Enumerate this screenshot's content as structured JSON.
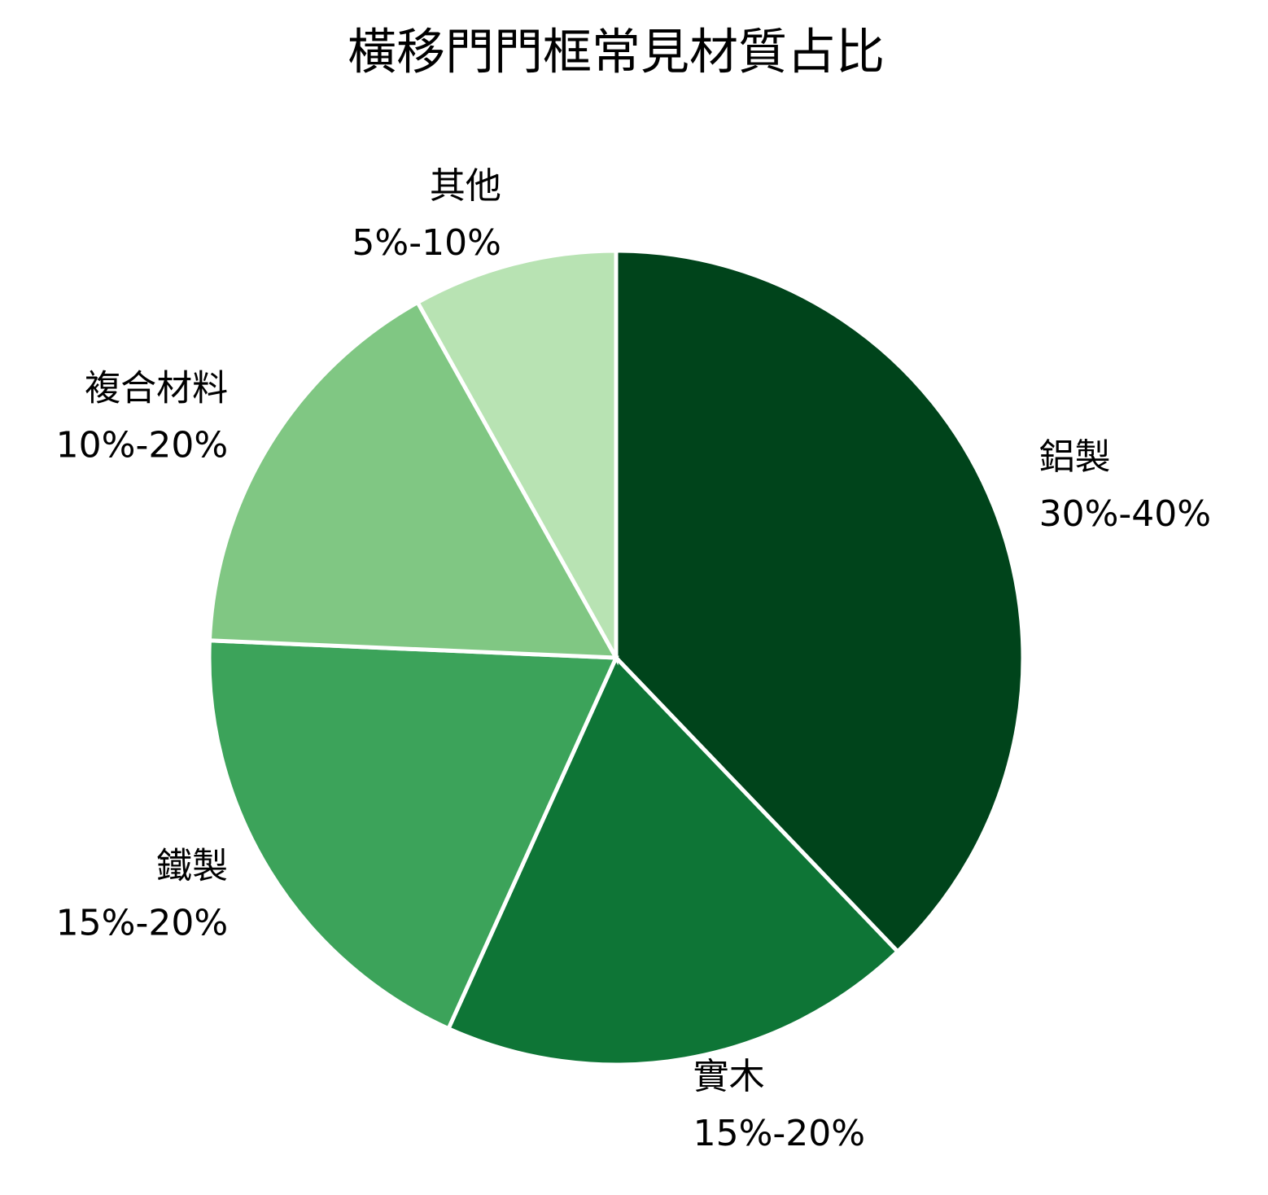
{
  "chart_data": {
    "type": "pie",
    "title": "橫移門門框常見材質占比",
    "categories": [
      "鋁製",
      "實木",
      "鐵製",
      "複合材料",
      "其他"
    ],
    "values": [
      35,
      17.5,
      17.5,
      15,
      7.5
    ],
    "value_labels": [
      "30%-40%",
      "15%-20%",
      "15%-20%",
      "10%-20%",
      "5%-10%"
    ],
    "colors": [
      "#00441b",
      "#0e7536",
      "#3ca35a",
      "#80c783",
      "#b8e3b3"
    ]
  }
}
